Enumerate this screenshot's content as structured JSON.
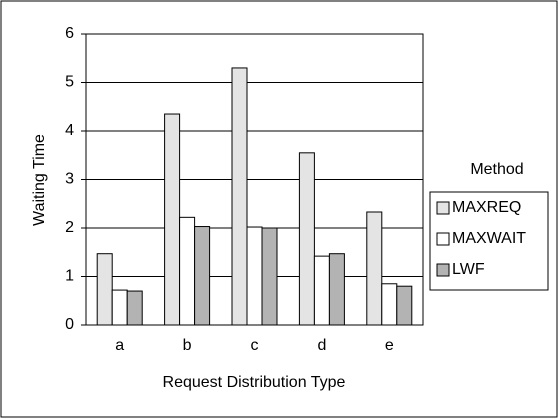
{
  "chart_data": {
    "type": "bar",
    "x_label": "Request Distribution Type",
    "y_label": "Waiting Time",
    "legend_title": "Method",
    "categories": [
      "a",
      "b",
      "c",
      "d",
      "e"
    ],
    "series": [
      {
        "name": "MAXREQ",
        "color": "#e4e4e4",
        "values": [
          1.47,
          4.35,
          5.3,
          3.55,
          2.33
        ]
      },
      {
        "name": "MAXWAIT",
        "color": "#ffffff",
        "values": [
          0.72,
          2.22,
          2.02,
          1.42,
          0.85
        ]
      },
      {
        "name": "LWF",
        "color": "#b3b3b3",
        "values": [
          0.7,
          2.03,
          2.0,
          1.47,
          0.8
        ]
      }
    ],
    "ylim": [
      0,
      6
    ],
    "yticks": [
      0,
      1,
      2,
      3,
      4,
      5,
      6
    ],
    "grid": true,
    "legend": "right"
  }
}
